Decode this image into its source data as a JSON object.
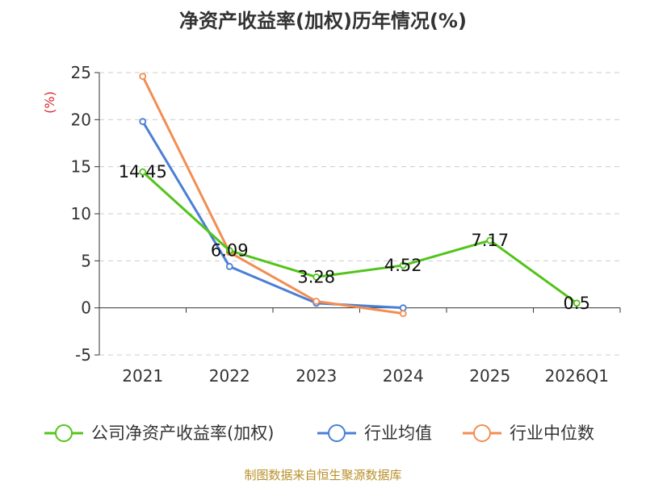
{
  "chart_data": {
    "type": "line",
    "title": "净资产收益率(加权)历年情况(%)",
    "ylabel": "(%)",
    "xlabel": "",
    "categories": [
      "2021",
      "2022",
      "2023",
      "2024",
      "2025",
      "2026Q1"
    ],
    "ylim": [
      -5,
      25
    ],
    "yticks": [
      -5,
      0,
      5,
      10,
      15,
      20,
      25
    ],
    "grid": true,
    "legend_position": "bottom",
    "series": [
      {
        "name": "公司净资产收益率(加权)",
        "color": "#52c41a",
        "values": [
          14.45,
          6.09,
          3.28,
          4.52,
          7.17,
          0.5
        ],
        "labels": [
          "14.45",
          "6.09",
          "3.28",
          "4.52",
          "7.17",
          "0.5"
        ]
      },
      {
        "name": "行业均值",
        "color": "#4a7fd6",
        "values": [
          19.8,
          4.4,
          0.5,
          0.0,
          null,
          null
        ]
      },
      {
        "name": "行业中位数",
        "color": "#f28e52",
        "values": [
          24.6,
          5.9,
          0.7,
          -0.6,
          null,
          null
        ]
      }
    ]
  },
  "footer": "制图数据来自恒生聚源数据库"
}
